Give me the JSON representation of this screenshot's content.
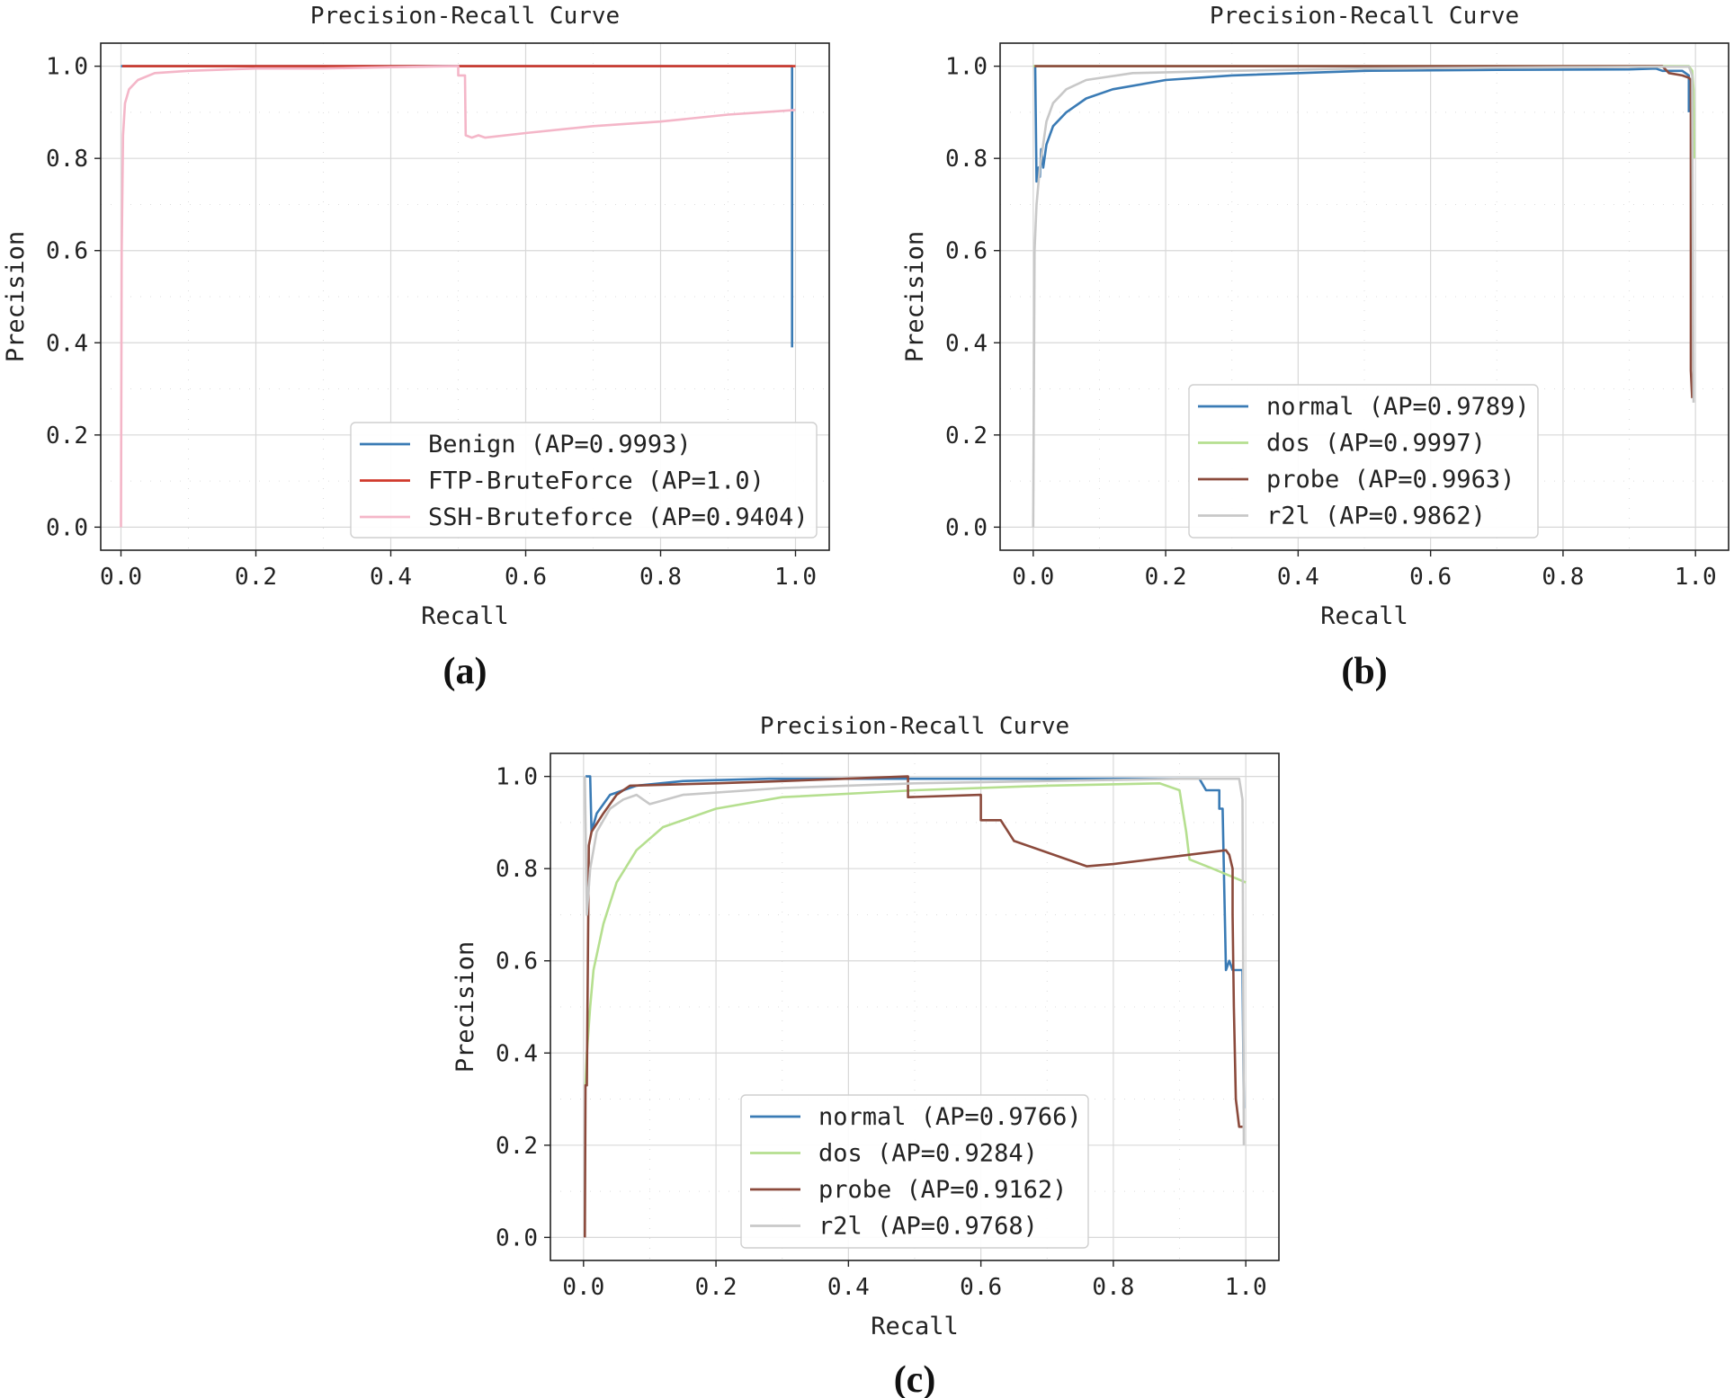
{
  "chart_data": [
    {
      "id": "a",
      "type": "line",
      "title": "Precision-Recall Curve",
      "xlabel": "Recall",
      "ylabel": "Precision",
      "caption": "(a)",
      "xlim": [
        -0.03,
        1.05
      ],
      "ylim": [
        -0.05,
        1.05
      ],
      "xticks": [
        "0.0",
        "0.2",
        "0.4",
        "0.6",
        "0.8",
        "1.0"
      ],
      "yticks": [
        "0.0",
        "0.2",
        "0.4",
        "0.6",
        "0.8",
        "1.0"
      ],
      "grid": true,
      "legend_position": "lower-right",
      "series": [
        {
          "name": "Benign (AP=0.9993)",
          "color": "#3a7bb5",
          "points": [
            [
              0,
              1.0
            ],
            [
              0.2,
              1.0
            ],
            [
              0.5,
              1.0
            ],
            [
              0.8,
              1.0
            ],
            [
              0.995,
              1.0
            ],
            [
              0.995,
              0.39
            ]
          ]
        },
        {
          "name": "FTP-BruteForce (AP=1.0)",
          "color": "#d0392b",
          "points": [
            [
              0.002,
              1.0
            ],
            [
              0.3,
              1.0
            ],
            [
              0.7,
              1.0
            ],
            [
              1.0,
              1.0
            ]
          ]
        },
        {
          "name": "SSH-Bruteforce (AP=0.9404)",
          "color": "#f4b6c8",
          "points": [
            [
              0,
              0.0
            ],
            [
              0.001,
              0.6
            ],
            [
              0.003,
              0.85
            ],
            [
              0.006,
              0.92
            ],
            [
              0.012,
              0.95
            ],
            [
              0.025,
              0.97
            ],
            [
              0.05,
              0.985
            ],
            [
              0.1,
              0.99
            ],
            [
              0.2,
              0.995
            ],
            [
              0.3,
              0.995
            ],
            [
              0.4,
              0.998
            ],
            [
              0.5,
              1.0
            ],
            [
              0.5,
              0.98
            ],
            [
              0.51,
              0.98
            ],
            [
              0.511,
              0.85
            ],
            [
              0.52,
              0.845
            ],
            [
              0.53,
              0.85
            ],
            [
              0.54,
              0.845
            ],
            [
              0.6,
              0.855
            ],
            [
              0.7,
              0.87
            ],
            [
              0.8,
              0.88
            ],
            [
              0.9,
              0.895
            ],
            [
              0.95,
              0.9
            ],
            [
              1.0,
              0.905
            ]
          ]
        }
      ]
    },
    {
      "id": "b",
      "type": "line",
      "title": "Precision-Recall Curve",
      "xlabel": "Recall",
      "ylabel": "Precision",
      "caption": "(b)",
      "xlim": [
        -0.05,
        1.05
      ],
      "ylim": [
        -0.05,
        1.05
      ],
      "xticks": [
        "0.0",
        "0.2",
        "0.4",
        "0.6",
        "0.8",
        "1.0"
      ],
      "yticks": [
        "0.0",
        "0.2",
        "0.4",
        "0.6",
        "0.8",
        "1.0"
      ],
      "grid": true,
      "legend_position": "lower-right",
      "series": [
        {
          "name": "normal (AP=0.9789)",
          "color": "#3a7bb5",
          "points": [
            [
              0.003,
              1.0
            ],
            [
              0.005,
              0.75
            ],
            [
              0.008,
              0.78
            ],
            [
              0.01,
              0.76
            ],
            [
              0.012,
              0.82
            ],
            [
              0.015,
              0.78
            ],
            [
              0.02,
              0.83
            ],
            [
              0.03,
              0.87
            ],
            [
              0.05,
              0.9
            ],
            [
              0.08,
              0.93
            ],
            [
              0.12,
              0.95
            ],
            [
              0.2,
              0.97
            ],
            [
              0.3,
              0.98
            ],
            [
              0.5,
              0.99
            ],
            [
              0.7,
              0.992
            ],
            [
              0.9,
              0.993
            ],
            [
              0.94,
              0.995
            ],
            [
              0.95,
              0.99
            ],
            [
              0.98,
              0.99
            ],
            [
              0.99,
              0.98
            ],
            [
              0.99,
              0.9
            ]
          ]
        },
        {
          "name": "dos (AP=0.9997)",
          "color": "#b5df8f",
          "points": [
            [
              0,
              1.0
            ],
            [
              0.5,
              1.0
            ],
            [
              0.99,
              1.0
            ],
            [
              0.995,
              0.99
            ],
            [
              0.997,
              0.95
            ],
            [
              0.998,
              0.8
            ]
          ]
        },
        {
          "name": "probe (AP=0.9963)",
          "color": "#8b4a3c",
          "points": [
            [
              0.002,
              1.0
            ],
            [
              0.5,
              1.0
            ],
            [
              0.95,
              1.0
            ],
            [
              0.96,
              0.985
            ],
            [
              0.98,
              0.98
            ],
            [
              0.99,
              0.975
            ],
            [
              0.993,
              0.97
            ],
            [
              0.993,
              0.34
            ],
            [
              0.995,
              0.28
            ]
          ]
        },
        {
          "name": "r2l (AP=0.9862)",
          "color": "#c8c8c8",
          "points": [
            [
              0,
              0.0
            ],
            [
              0.002,
              0.6
            ],
            [
              0.005,
              0.7
            ],
            [
              0.01,
              0.78
            ],
            [
              0.02,
              0.88
            ],
            [
              0.03,
              0.92
            ],
            [
              0.05,
              0.95
            ],
            [
              0.08,
              0.97
            ],
            [
              0.15,
              0.985
            ],
            [
              0.3,
              0.99
            ],
            [
              0.5,
              0.995
            ],
            [
              0.8,
              0.998
            ],
            [
              0.99,
              0.999
            ],
            [
              0.995,
              0.98
            ],
            [
              0.997,
              0.27
            ]
          ]
        }
      ]
    },
    {
      "id": "c",
      "type": "line",
      "title": "Precision-Recall Curve",
      "xlabel": "Recall",
      "ylabel": "Precision",
      "caption": "(c)",
      "xlim": [
        -0.05,
        1.05
      ],
      "ylim": [
        -0.05,
        1.05
      ],
      "xticks": [
        "0.0",
        "0.2",
        "0.4",
        "0.6",
        "0.8",
        "1.0"
      ],
      "yticks": [
        "0.0",
        "0.2",
        "0.4",
        "0.6",
        "0.8",
        "1.0"
      ],
      "grid": true,
      "legend_position": "lower-center",
      "series": [
        {
          "name": "normal (AP=0.9766)",
          "color": "#3a7bb5",
          "points": [
            [
              0.003,
              1.0
            ],
            [
              0.01,
              1.0
            ],
            [
              0.012,
              0.88
            ],
            [
              0.02,
              0.92
            ],
            [
              0.04,
              0.96
            ],
            [
              0.08,
              0.98
            ],
            [
              0.15,
              0.99
            ],
            [
              0.28,
              0.995
            ],
            [
              0.5,
              0.995
            ],
            [
              0.93,
              0.995
            ],
            [
              0.94,
              0.97
            ],
            [
              0.96,
              0.97
            ],
            [
              0.96,
              0.93
            ],
            [
              0.965,
              0.93
            ],
            [
              0.97,
              0.58
            ],
            [
              0.975,
              0.6
            ],
            [
              0.98,
              0.58
            ],
            [
              0.995,
              0.58
            ],
            [
              0.997,
              0.28
            ]
          ]
        },
        {
          "name": "dos (AP=0.9284)",
          "color": "#b5df8f",
          "points": [
            [
              0.003,
              0.33
            ],
            [
              0.005,
              0.4
            ],
            [
              0.01,
              0.5
            ],
            [
              0.015,
              0.58
            ],
            [
              0.03,
              0.68
            ],
            [
              0.05,
              0.77
            ],
            [
              0.08,
              0.84
            ],
            [
              0.12,
              0.89
            ],
            [
              0.2,
              0.93
            ],
            [
              0.3,
              0.955
            ],
            [
              0.5,
              0.97
            ],
            [
              0.7,
              0.98
            ],
            [
              0.87,
              0.985
            ],
            [
              0.9,
              0.97
            ],
            [
              0.91,
              0.88
            ],
            [
              0.915,
              0.82
            ],
            [
              0.95,
              0.8
            ],
            [
              1.0,
              0.77
            ]
          ]
        },
        {
          "name": "probe (AP=0.9162)",
          "color": "#8b4a3c",
          "points": [
            [
              0.002,
              0.0
            ],
            [
              0.003,
              0.33
            ],
            [
              0.005,
              0.33
            ],
            [
              0.008,
              0.85
            ],
            [
              0.012,
              0.88
            ],
            [
              0.03,
              0.92
            ],
            [
              0.05,
              0.96
            ],
            [
              0.07,
              0.98
            ],
            [
              0.2,
              0.985
            ],
            [
              0.3,
              0.99
            ],
            [
              0.49,
              1.0
            ],
            [
              0.49,
              0.955
            ],
            [
              0.6,
              0.96
            ],
            [
              0.6,
              0.905
            ],
            [
              0.63,
              0.905
            ],
            [
              0.65,
              0.86
            ],
            [
              0.76,
              0.805
            ],
            [
              0.8,
              0.81
            ],
            [
              0.97,
              0.84
            ],
            [
              0.975,
              0.83
            ],
            [
              0.98,
              0.8
            ],
            [
              0.98,
              0.7
            ],
            [
              0.982,
              0.5
            ],
            [
              0.985,
              0.3
            ],
            [
              0.99,
              0.24
            ],
            [
              0.995,
              0.24
            ]
          ]
        },
        {
          "name": "r2l (AP=0.9768)",
          "color": "#c8c8c8",
          "points": [
            [
              0.002,
              1.0
            ],
            [
              0.005,
              0.7
            ],
            [
              0.01,
              0.8
            ],
            [
              0.02,
              0.88
            ],
            [
              0.04,
              0.93
            ],
            [
              0.06,
              0.95
            ],
            [
              0.08,
              0.96
            ],
            [
              0.09,
              0.95
            ],
            [
              0.1,
              0.94
            ],
            [
              0.15,
              0.96
            ],
            [
              0.3,
              0.975
            ],
            [
              0.5,
              0.985
            ],
            [
              0.9,
              0.995
            ],
            [
              0.99,
              0.995
            ],
            [
              0.995,
              0.95
            ],
            [
              0.997,
              0.2
            ]
          ]
        }
      ]
    }
  ]
}
